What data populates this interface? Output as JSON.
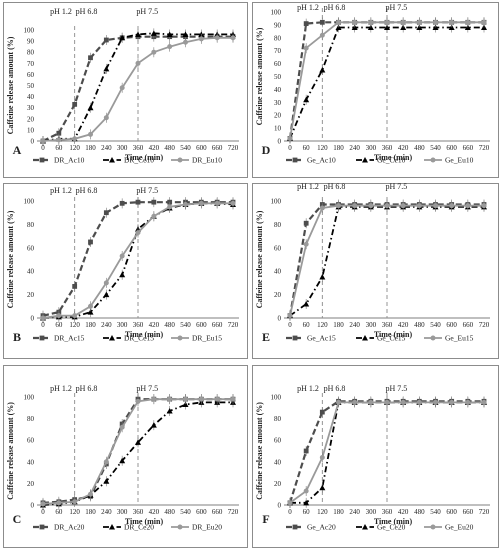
{
  "colors": {
    "series1": "#4d4d4d",
    "series2": "#000000",
    "series3": "#9a9a9a",
    "phline": "#8a8a8a",
    "panel_border": "#8c8c8c",
    "grid": "#d9d9d9"
  },
  "chart_data": [
    {
      "type": "line",
      "letter": "A",
      "categories": [
        "0",
        "60",
        "120",
        "180",
        "240",
        "300",
        "360",
        "420",
        "480",
        "540",
        "600",
        "660",
        "720"
      ],
      "xlabel": "Time (min)",
      "ylabel": "Caffeine release amount (%)",
      "ylim": [
        0,
        100
      ],
      "yticks": [
        "0",
        "10",
        "20",
        "30",
        "40",
        "50",
        "60",
        "70",
        "80",
        "90",
        "100"
      ],
      "ph_markers": [
        {
          "label": "pH 1.2",
          "at": null
        },
        {
          "label": "pH 6.8",
          "at": 120
        },
        {
          "label": "pH 7.5",
          "at": 360
        }
      ],
      "series": [
        {
          "name": "DR_Ac10",
          "values": [
            0,
            7,
            33,
            75,
            91,
            93,
            94,
            94,
            94,
            94,
            94,
            94,
            94
          ]
        },
        {
          "name": "DR_Ce10",
          "values": [
            0,
            2,
            2,
            30,
            65,
            93,
            96,
            97,
            96,
            96,
            96,
            96,
            96
          ]
        },
        {
          "name": "DR_Eu10",
          "values": [
            0,
            1,
            2,
            6,
            21,
            48,
            70,
            80,
            85,
            89,
            92,
            93,
            93
          ]
        }
      ]
    },
    {
      "type": "line",
      "letter": "D",
      "categories": [
        "0",
        "60",
        "120",
        "180",
        "240",
        "300",
        "360",
        "420",
        "480",
        "540",
        "600",
        "660",
        "720"
      ],
      "xlabel": "Time (min)",
      "ylabel": "Caffeine release amount (%)",
      "ylim": [
        0,
        100
      ],
      "yticks": [
        "0",
        "10",
        "20",
        "30",
        "40",
        "50",
        "60",
        "70",
        "80",
        "90",
        "100"
      ],
      "ph_markers": [
        {
          "label": "pH 1.2",
          "at": null
        },
        {
          "label": "pH 6.8",
          "at": 120
        },
        {
          "label": "pH 7.5",
          "at": 360
        }
      ],
      "series": [
        {
          "name": "Ge_Ac10",
          "values": [
            2,
            91,
            92,
            92,
            92,
            92,
            92,
            92,
            92,
            92,
            92,
            92,
            92
          ]
        },
        {
          "name": "Ge_Ce10",
          "values": [
            2,
            32,
            55,
            88,
            88,
            88,
            88,
            88,
            88,
            88,
            88,
            88,
            88
          ]
        },
        {
          "name": "Ge_Eu10",
          "values": [
            2,
            72,
            82,
            92,
            92,
            92,
            92,
            92,
            92,
            92,
            92,
            92,
            92
          ]
        }
      ]
    },
    {
      "type": "line",
      "letter": "B",
      "categories": [
        "0",
        "60",
        "120",
        "180",
        "240",
        "300",
        "360",
        "420",
        "480",
        "540",
        "600",
        "660",
        "720"
      ],
      "xlabel": "Time (min)",
      "ylabel": "Caffeine release amount (%)",
      "ylim": [
        0,
        100
      ],
      "yticks": [
        "0",
        "20",
        "40",
        "60",
        "80",
        "100"
      ],
      "ph_markers": [
        {
          "label": "pH 1.2",
          "at": null
        },
        {
          "label": "pH 6.8",
          "at": 120
        },
        {
          "label": "pH 7.5",
          "at": 360
        }
      ],
      "series": [
        {
          "name": "DR_Ac15",
          "values": [
            2,
            5,
            27,
            65,
            90,
            98,
            99,
            99,
            99,
            99,
            99,
            99,
            99
          ]
        },
        {
          "name": "DR_Ce15",
          "values": [
            0,
            1,
            1,
            5,
            20,
            37,
            76,
            87,
            94,
            97,
            98,
            98,
            97
          ]
        },
        {
          "name": "DR_Eu15",
          "values": [
            0,
            2,
            2,
            10,
            30,
            53,
            73,
            87,
            95,
            97,
            98,
            98,
            98
          ]
        }
      ]
    },
    {
      "type": "line",
      "letter": "E",
      "categories": [
        "0",
        "60",
        "120",
        "180",
        "240",
        "300",
        "360",
        "420",
        "480",
        "540",
        "600",
        "660",
        "720"
      ],
      "xlabel": "Time (min)",
      "ylabel": "Caffeine release amount (%)",
      "ylim": [
        0,
        100
      ],
      "yticks": [
        "0",
        "20",
        "40",
        "60",
        "80",
        "100"
      ],
      "ph_markers": [
        {
          "label": "pH 1.2",
          "at": null
        },
        {
          "label": "pH 6.8",
          "at": 120
        },
        {
          "label": "pH 7.5",
          "at": 360
        }
      ],
      "series": [
        {
          "name": "Ge_Ac15",
          "values": [
            2,
            81,
            97,
            97,
            97,
            97,
            97,
            97,
            97,
            97,
            97,
            97,
            97
          ]
        },
        {
          "name": "Ge_Ce15",
          "values": [
            2,
            12,
            35,
            95,
            95,
            95,
            95,
            95,
            95,
            95,
            95,
            95,
            95
          ]
        },
        {
          "name": "Ge_Eu15",
          "values": [
            2,
            63,
            94,
            96,
            96,
            96,
            96,
            96,
            96,
            96,
            96,
            96,
            96
          ]
        }
      ]
    },
    {
      "type": "line",
      "letter": "C",
      "categories": [
        "0",
        "60",
        "120",
        "180",
        "240",
        "300",
        "360",
        "420",
        "480",
        "540",
        "600",
        "660",
        "720"
      ],
      "xlabel": "Time (min)",
      "ylabel": "Caffeine release amount (%)",
      "ylim": [
        0,
        100
      ],
      "yticks": [
        "0",
        "20",
        "40",
        "60",
        "80",
        "100"
      ],
      "ph_markers": [
        {
          "label": "pH 1.2",
          "at": null
        },
        {
          "label": "pH 6.8",
          "at": 120
        },
        {
          "label": "pH 7.5",
          "at": 360
        }
      ],
      "series": [
        {
          "name": "DR_Ac20",
          "values": [
            2,
            3,
            5,
            8,
            38,
            75,
            98,
            98,
            98,
            98,
            98,
            98,
            98
          ]
        },
        {
          "name": "DR_Ce20",
          "values": [
            0,
            1,
            3,
            9,
            22,
            41,
            58,
            74,
            87,
            93,
            95,
            95,
            95
          ]
        },
        {
          "name": "DR_Eu20",
          "values": [
            1,
            2,
            3,
            10,
            40,
            72,
            96,
            98,
            98,
            98,
            98,
            98,
            98
          ]
        }
      ]
    },
    {
      "type": "line",
      "letter": "F",
      "categories": [
        "0",
        "60",
        "120",
        "180",
        "240",
        "300",
        "360",
        "420",
        "480",
        "540",
        "600",
        "660",
        "720"
      ],
      "xlabel": "Time (min)",
      "ylabel": "Caffeine release amount (%)",
      "ylim": [
        0,
        100
      ],
      "yticks": [
        "0",
        "20",
        "40",
        "60",
        "80",
        "100"
      ],
      "ph_markers": [
        {
          "label": "pH 1.2",
          "at": null
        },
        {
          "label": "pH 6.8",
          "at": 120
        },
        {
          "label": "pH 7.5",
          "at": 360
        }
      ],
      "series": [
        {
          "name": "Ge_Ac20",
          "values": [
            2,
            50,
            86,
            96,
            96,
            96,
            96,
            96,
            96,
            96,
            96,
            96,
            96
          ]
        },
        {
          "name": "Ge_Ce20",
          "values": [
            2,
            2,
            16,
            95,
            95,
            95,
            95,
            95,
            95,
            95,
            95,
            95,
            95
          ]
        },
        {
          "name": "Ge_Eu20",
          "values": [
            2,
            13,
            44,
            95,
            95,
            95,
            95,
            95,
            95,
            95,
            95,
            95,
            95
          ]
        }
      ]
    }
  ]
}
